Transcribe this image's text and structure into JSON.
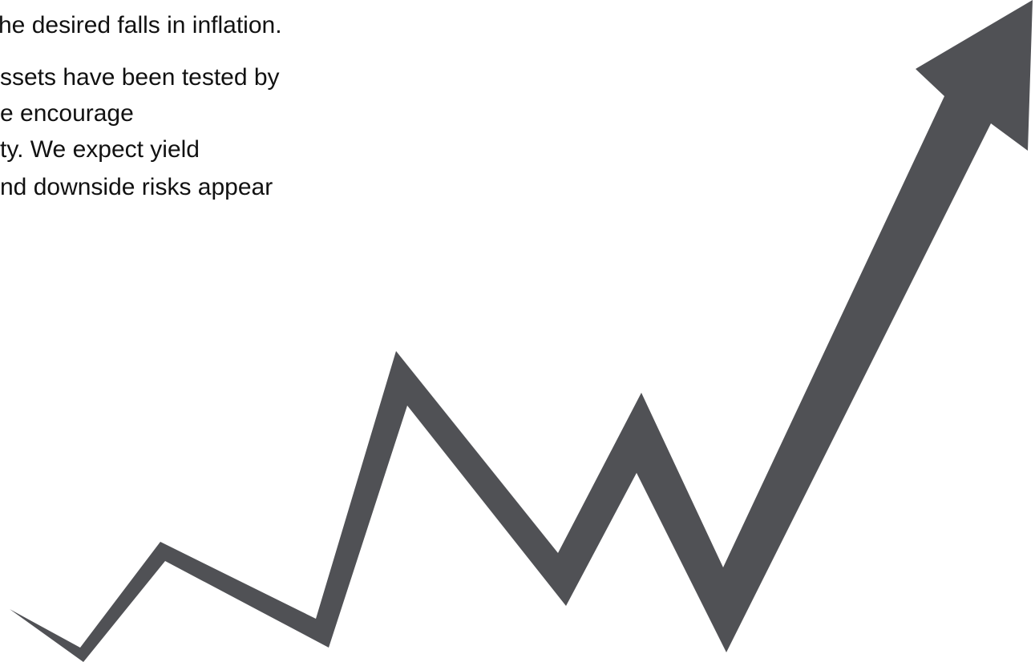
{
  "text": {
    "lines": [
      "he desired falls in inflation.",
      "ssets have been tested by",
      "e encourage",
      "ty. We expect yield",
      "nd downside risks appear"
    ]
  },
  "graphic": {
    "icon": "rising-zigzag-arrow-icon",
    "color": "#505155"
  }
}
